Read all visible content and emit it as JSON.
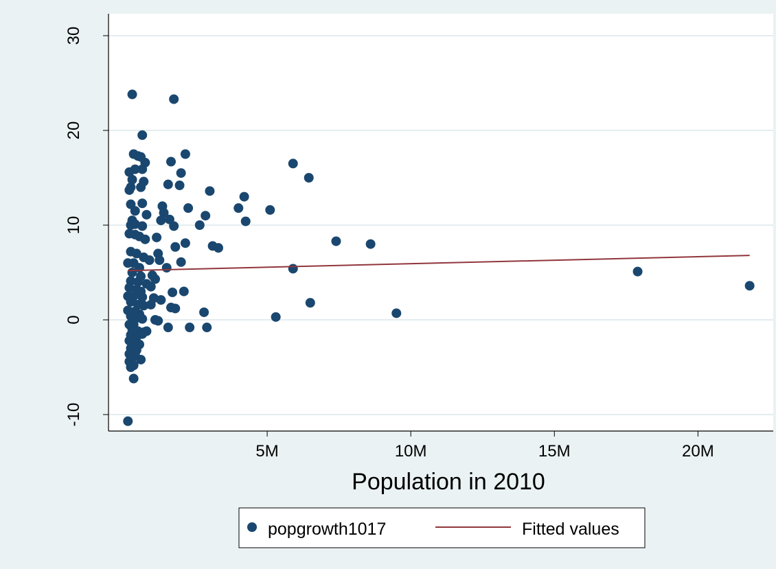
{
  "chart_data": {
    "type": "scatter",
    "title": "",
    "xlabel": "Population in 2010",
    "ylabel": "",
    "xlim": [
      0,
      22000000
    ],
    "ylim": [
      -11,
      31
    ],
    "x_ticks": [
      {
        "value": 5000000,
        "label": "5M"
      },
      {
        "value": 10000000,
        "label": "10M"
      },
      {
        "value": 15000000,
        "label": "15M"
      },
      {
        "value": 20000000,
        "label": "20M"
      }
    ],
    "y_ticks": [
      {
        "value": -10,
        "label": "-10"
      },
      {
        "value": 0,
        "label": "0"
      },
      {
        "value": 10,
        "label": "10"
      },
      {
        "value": 20,
        "label": "20"
      },
      {
        "value": 30,
        "label": "30"
      }
    ],
    "grid": true,
    "legend_position": "bottom",
    "colors": {
      "background": "#eaf2f3",
      "plot_background": "#ffffff",
      "gridline": "#e3ecef",
      "points": "#1a476f",
      "fitted_line": "#90353b"
    },
    "series": [
      {
        "name": "popgrowth1017",
        "type": "scatter",
        "points": [
          [
            300000,
            23.8
          ],
          [
            1750000,
            23.3
          ],
          [
            650000,
            19.5
          ],
          [
            350000,
            17.5
          ],
          [
            500000,
            17.3
          ],
          [
            600000,
            17.2
          ],
          [
            2150000,
            17.5
          ],
          [
            1650000,
            16.7
          ],
          [
            750000,
            16.6
          ],
          [
            5900000,
            16.5
          ],
          [
            200000,
            15.6
          ],
          [
            400000,
            15.9
          ],
          [
            650000,
            15.9
          ],
          [
            2000000,
            15.5
          ],
          [
            6450000,
            15.0
          ],
          [
            300000,
            14.8
          ],
          [
            700000,
            14.6
          ],
          [
            1550000,
            14.3
          ],
          [
            1950000,
            14.2
          ],
          [
            250000,
            14.0
          ],
          [
            600000,
            14.0
          ],
          [
            200000,
            13.7
          ],
          [
            3000000,
            13.6
          ],
          [
            4200000,
            13.0
          ],
          [
            250000,
            12.2
          ],
          [
            650000,
            12.3
          ],
          [
            1350000,
            12.0
          ],
          [
            2250000,
            11.8
          ],
          [
            4000000,
            11.8
          ],
          [
            5100000,
            11.6
          ],
          [
            400000,
            11.5
          ],
          [
            1400000,
            11.3
          ],
          [
            800000,
            11.1
          ],
          [
            2850000,
            11.0
          ],
          [
            300000,
            10.5
          ],
          [
            1300000,
            10.5
          ],
          [
            1600000,
            10.6
          ],
          [
            4250000,
            10.4
          ],
          [
            250000,
            10.0
          ],
          [
            400000,
            10.1
          ],
          [
            650000,
            9.9
          ],
          [
            1750000,
            9.9
          ],
          [
            2650000,
            10.0
          ],
          [
            200000,
            9.1
          ],
          [
            400000,
            9.0
          ],
          [
            550000,
            8.8
          ],
          [
            750000,
            8.5
          ],
          [
            1150000,
            8.7
          ],
          [
            2150000,
            8.1
          ],
          [
            3100000,
            7.8
          ],
          [
            3300000,
            7.6
          ],
          [
            1800000,
            7.7
          ],
          [
            7400000,
            8.3
          ],
          [
            8600000,
            8.0
          ],
          [
            250000,
            7.2
          ],
          [
            450000,
            7.0
          ],
          [
            700000,
            6.6
          ],
          [
            900000,
            6.3
          ],
          [
            1200000,
            7.0
          ],
          [
            1250000,
            6.3
          ],
          [
            2000000,
            6.1
          ],
          [
            150000,
            6.0
          ],
          [
            350000,
            6.0
          ],
          [
            550000,
            5.5
          ],
          [
            1500000,
            5.5
          ],
          [
            5900000,
            5.4
          ],
          [
            300000,
            5.0
          ],
          [
            600000,
            4.6
          ],
          [
            1000000,
            4.7
          ],
          [
            1100000,
            4.3
          ],
          [
            250000,
            4.1
          ],
          [
            500000,
            4.0
          ],
          [
            800000,
            3.8
          ],
          [
            950000,
            3.5
          ],
          [
            200000,
            3.4
          ],
          [
            450000,
            3.2
          ],
          [
            600000,
            3.0
          ],
          [
            1700000,
            2.9
          ],
          [
            2100000,
            3.0
          ],
          [
            150000,
            2.5
          ],
          [
            350000,
            2.5
          ],
          [
            650000,
            2.4
          ],
          [
            1050000,
            2.3
          ],
          [
            1300000,
            2.1
          ],
          [
            250000,
            1.9
          ],
          [
            500000,
            1.6
          ],
          [
            700000,
            1.5
          ],
          [
            950000,
            1.6
          ],
          [
            6500000,
            1.8
          ],
          [
            1650000,
            1.3
          ],
          [
            1800000,
            1.2
          ],
          [
            150000,
            1.0
          ],
          [
            400000,
            0.9
          ],
          [
            550000,
            0.6
          ],
          [
            2800000,
            0.8
          ],
          [
            9500000,
            0.7
          ],
          [
            250000,
            0.4
          ],
          [
            450000,
            0.2
          ],
          [
            5300000,
            0.3
          ],
          [
            1100000,
            0.0
          ],
          [
            1200000,
            -0.1
          ],
          [
            650000,
            0.1
          ],
          [
            200000,
            -0.5
          ],
          [
            350000,
            -0.5
          ],
          [
            1550000,
            -0.8
          ],
          [
            2300000,
            -0.8
          ],
          [
            2900000,
            -0.8
          ],
          [
            300000,
            -1.0
          ],
          [
            500000,
            -1.2
          ],
          [
            700000,
            -1.3
          ],
          [
            800000,
            -1.2
          ],
          [
            250000,
            -1.6
          ],
          [
            450000,
            -1.8
          ],
          [
            650000,
            -1.5
          ],
          [
            200000,
            -2.2
          ],
          [
            350000,
            -2.5
          ],
          [
            550000,
            -2.6
          ],
          [
            250000,
            -3.0
          ],
          [
            450000,
            -3.2
          ],
          [
            200000,
            -3.6
          ],
          [
            400000,
            -3.7
          ],
          [
            300000,
            -4.0
          ],
          [
            600000,
            -4.2
          ],
          [
            200000,
            -4.4
          ],
          [
            350000,
            -4.8
          ],
          [
            250000,
            -5.0
          ],
          [
            350000,
            -6.2
          ],
          [
            150000,
            -10.7
          ],
          [
            17900000,
            5.1
          ],
          [
            21800000,
            3.6
          ]
        ]
      },
      {
        "name": "Fitted values",
        "type": "line",
        "points": [
          [
            150000,
            5.2
          ],
          [
            21800000,
            6.8
          ]
        ]
      }
    ]
  }
}
